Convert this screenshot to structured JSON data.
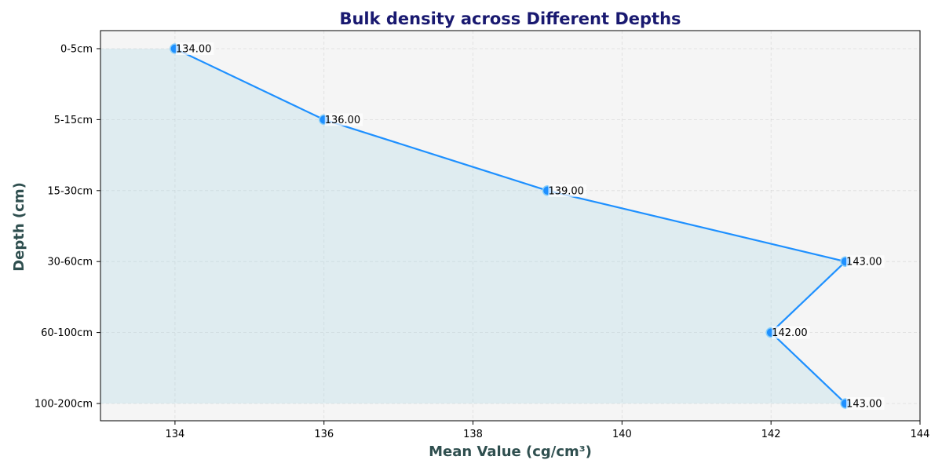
{
  "chart_data": {
    "type": "line",
    "title": "Bulk density across Different Depths",
    "xlabel": "Mean Value (cg/cm³)",
    "ylabel": "Depth (cm)",
    "categories": [
      "0-5cm",
      "5-15cm",
      "15-30cm",
      "30-60cm",
      "60-100cm",
      "100-200cm"
    ],
    "values": [
      134.0,
      136.0,
      139.0,
      143.0,
      142.0,
      143.0
    ],
    "data_labels": [
      "134.00",
      "136.00",
      "139.00",
      "143.00",
      "142.00",
      "143.00"
    ],
    "xlim": [
      133,
      144
    ],
    "xticks": [
      134,
      136,
      138,
      140,
      142,
      144
    ],
    "orientation": "horizontal-values",
    "grid": true,
    "fill_area": true,
    "colors": {
      "line": "#1e90ff",
      "marker": "#1e90ff",
      "fill": "#add8e6",
      "plot_bg": "#f5f5f5",
      "title": "#191970",
      "axis_label": "#2f4f4f"
    }
  }
}
